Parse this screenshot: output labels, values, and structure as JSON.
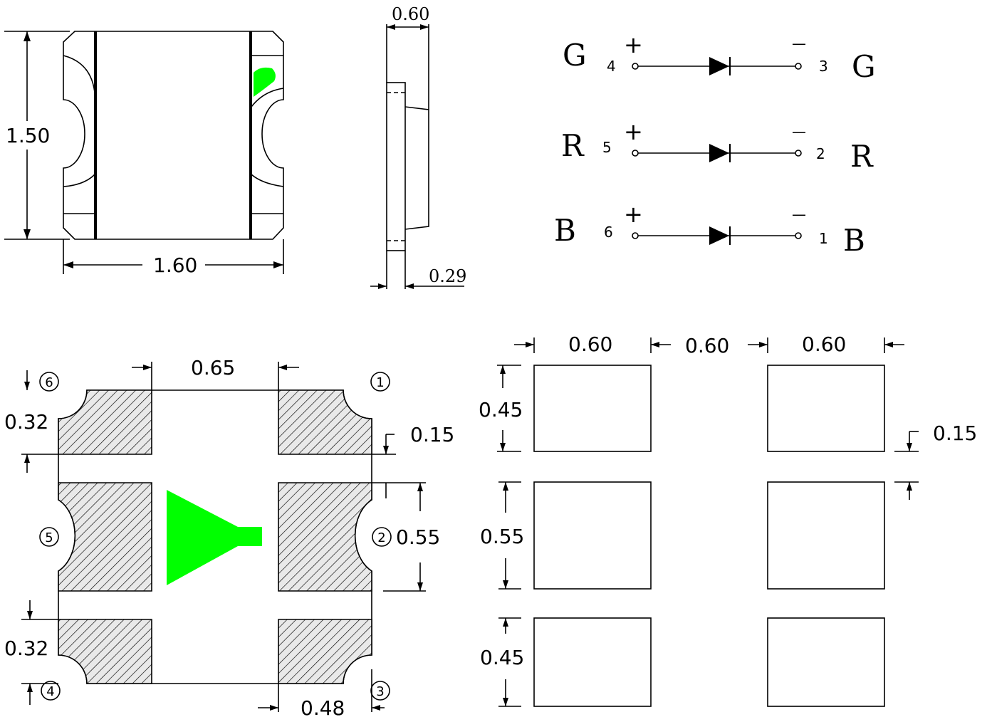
{
  "colors": {
    "led_die": "#00ff00",
    "line": "#000000",
    "background": "#ffffff"
  },
  "top_view": {
    "height_label": "1.50",
    "width_label": "1.60"
  },
  "side_view": {
    "height_label": "0.60",
    "lens_label": "0.29"
  },
  "schematic": {
    "rows": [
      {
        "left_letter": "G",
        "anode_pin": "4",
        "cathode_pin": "3",
        "right_letter": "G",
        "plus": "+",
        "minus": "—"
      },
      {
        "left_letter": "R",
        "anode_pin": "5",
        "cathode_pin": "2",
        "right_letter": "R",
        "plus": "+",
        "minus": "—"
      },
      {
        "left_letter": "B",
        "anode_pin": "6",
        "cathode_pin": "1",
        "right_letter": "B",
        "plus": "+",
        "minus": "—"
      }
    ]
  },
  "bottom_view": {
    "gap_label": "0.65",
    "top_pad_label": "0.32",
    "bottom_pad_label": "0.32",
    "notch_label": "0.15",
    "mid_pad_label": "0.55",
    "pad_width_label": "0.48",
    "pins": [
      "6",
      "1",
      "5",
      "2",
      "4",
      "3"
    ]
  },
  "footprint": {
    "col_labels": [
      "0.60",
      "0.60",
      "0.60"
    ],
    "row_labels": [
      "0.45",
      "0.55",
      "0.45"
    ],
    "gap_label": "0.15"
  }
}
